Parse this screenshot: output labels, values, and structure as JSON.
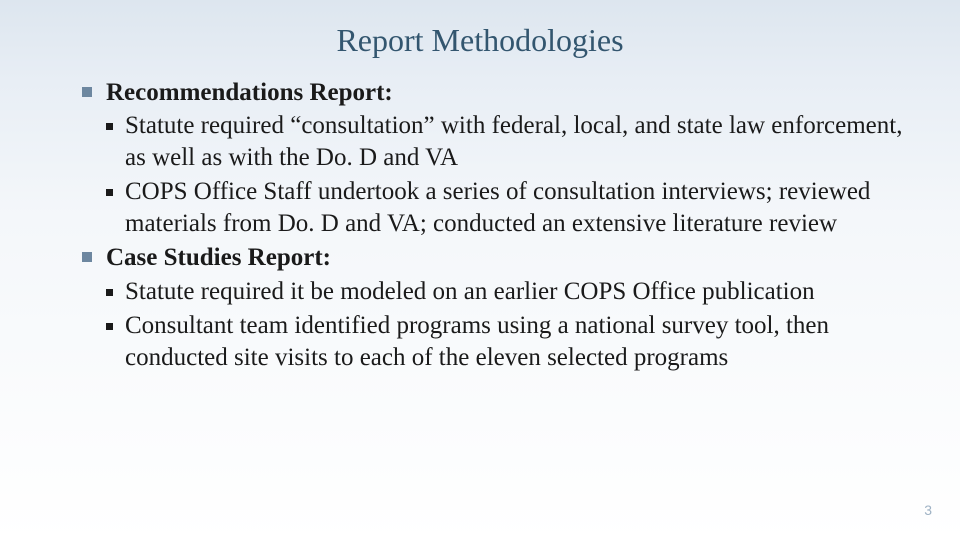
{
  "title": "Report Methodologies",
  "colors": {
    "title_color": "#33566f",
    "l1_bullet": "#6d87a0",
    "l2_bullet": "#1a1a1a",
    "text": "#1a1a1a",
    "page_num": "#9fb2c4",
    "bg_top": "#dde6ef",
    "bg_bottom": "#ffffff"
  },
  "typography": {
    "title_fontsize": 32,
    "body_fontsize": 25,
    "page_num_fontsize": 14,
    "font_family": "Georgia"
  },
  "sections": [
    {
      "heading": "Recommendations Report:",
      "items": [
        "Statute required “consultation” with federal, local, and state law enforcement, as well as with the Do. D and VA",
        "COPS Office Staff undertook a series of consultation interviews; reviewed materials from Do. D and VA; conducted an extensive literature review"
      ]
    },
    {
      "heading": "Case Studies Report:",
      "items": [
        "Statute required it be modeled on an earlier COPS Office publication",
        "Consultant team identified programs using a national survey tool, then conducted site visits to each of the eleven selected programs"
      ]
    }
  ],
  "page_number": "3"
}
